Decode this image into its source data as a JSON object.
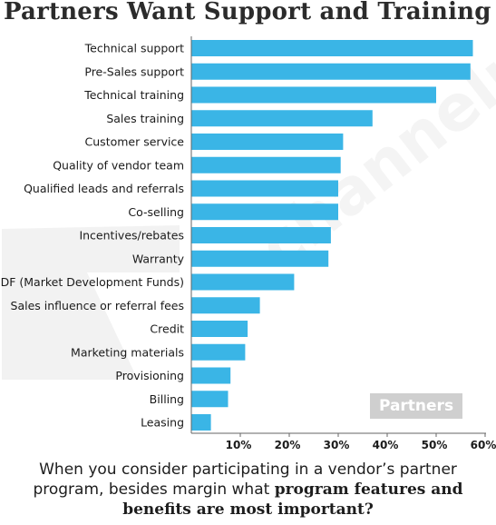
{
  "chart_data": {
    "type": "bar",
    "orientation": "horizontal",
    "title": "Partners Want Support and Training",
    "categories": [
      "Technical support",
      "Pre-Sales support",
      "Technical training",
      "Sales training",
      "Customer service",
      "Quality of vendor team",
      "Qualified leads and referrals",
      "Co-selling",
      "Incentives/rebates",
      "Warranty",
      "MDF (Market Development Funds)",
      "Sales influence or referral fees",
      "Credit",
      "Marketing materials",
      "Provisioning",
      "Billing",
      "Leasing"
    ],
    "values": [
      57.5,
      57,
      50,
      37,
      31,
      30.5,
      30,
      30,
      28.5,
      28,
      21,
      14,
      11.5,
      11,
      8,
      7.5,
      4
    ],
    "xlim": [
      0,
      60
    ],
    "xticks": [
      10,
      20,
      30,
      40,
      50,
      60
    ],
    "xtick_labels": [
      "10%",
      "20%",
      "30%",
      "40%",
      "50%",
      "60%"
    ],
    "bar_color": "#3ab5e6",
    "grid": false
  },
  "watermark": {
    "logo_text": "Partners",
    "faint_text": "channelpath"
  },
  "caption": {
    "line1": "When you consider participating in a vendor’s partner",
    "line2_plain": "program, besides margin what ",
    "line2_bold": "program features and",
    "line3_bold": "benefits are most important?"
  }
}
